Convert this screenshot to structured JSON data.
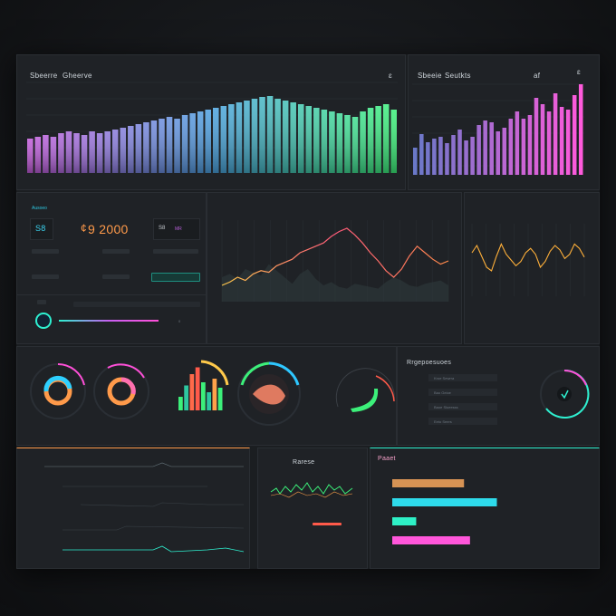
{
  "top_left": {
    "title": "Sbeerre",
    "subtitle": "Gheerve",
    "menu": "ɛ"
  },
  "top_right": {
    "title": "Sbeeie",
    "subtitle": "Seutkts",
    "menu_a": "af",
    "menu_b": "ɛ"
  },
  "kpi": {
    "label": "Ausoeo",
    "left_value": "S8",
    "main_value": "9 2000",
    "main_prefix": "¢",
    "right_value": "S8",
    "right_tag": "MR"
  },
  "list_panel": {
    "title": "Rrgepoesuoes",
    "items": [
      "Kroe Sewrra",
      "Bao Geioe",
      "Baoe Slueesss",
      "Eeto Seers"
    ]
  },
  "bottom_center": {
    "title": "Rarese"
  },
  "bottom_right": {
    "title": "Paaet"
  },
  "colors": {
    "accent_teal": "#2ef0d0",
    "accent_pink": "#ff4fd8",
    "accent_orange": "#ffa24a",
    "accent_green": "#3cf07a",
    "accent_yellow": "#ffc94a",
    "accent_red": "#ff5a4a"
  },
  "chart_data": [
    {
      "type": "bar",
      "values": [
        38,
        40,
        42,
        40,
        44,
        46,
        44,
        42,
        46,
        44,
        46,
        48,
        50,
        52,
        54,
        56,
        58,
        60,
        62,
        60,
        64,
        66,
        68,
        70,
        72,
        74,
        76,
        78,
        80,
        82,
        84,
        85,
        82,
        80,
        78,
        76,
        74,
        72,
        70,
        68,
        66,
        64,
        62,
        68,
        72,
        74,
        76,
        70
      ]
    },
    {
      "type": "bar",
      "values": [
        30,
        45,
        36,
        40,
        42,
        35,
        44,
        50,
        38,
        42,
        55,
        60,
        58,
        48,
        52,
        62,
        70,
        62,
        66,
        85,
        78,
        70,
        90,
        75,
        72,
        88,
        100
      ]
    },
    {
      "type": "line",
      "series": [
        {
          "name": "",
          "values": [
            20,
            24,
            30,
            26,
            34,
            38,
            36,
            44,
            48,
            52,
            60,
            64,
            68,
            72,
            80,
            86,
            90,
            82,
            72,
            60,
            50,
            38,
            30,
            40,
            56,
            68,
            60,
            52,
            46,
            50
          ]
        },
        {
          "name": "",
          "values": [
            30,
            34,
            28,
            40,
            36,
            32,
            46,
            38,
            30,
            22,
            34,
            40,
            28,
            20,
            24,
            18,
            16,
            22,
            20,
            18,
            16,
            24,
            30,
            26,
            20,
            18,
            22,
            24,
            26,
            20
          ]
        }
      ]
    },
    {
      "type": "line",
      "series": [
        {
          "name": "",
          "values": [
            60,
            70,
            55,
            40,
            35,
            55,
            72,
            58,
            50,
            42,
            48,
            60,
            66,
            58,
            40,
            48,
            62,
            70,
            64,
            52,
            58,
            72,
            66,
            54
          ]
        }
      ]
    },
    {
      "type": "bar",
      "values": [
        30,
        55,
        80,
        95,
        62,
        40,
        70,
        50
      ]
    },
    {
      "type": "bar",
      "series": [
        {
          "name": "",
          "values": [
            48
          ]
        },
        {
          "name": "",
          "values": [
            70
          ]
        },
        {
          "name": "",
          "values": [
            16
          ]
        },
        {
          "name": "",
          "values": [
            52
          ]
        }
      ]
    }
  ]
}
